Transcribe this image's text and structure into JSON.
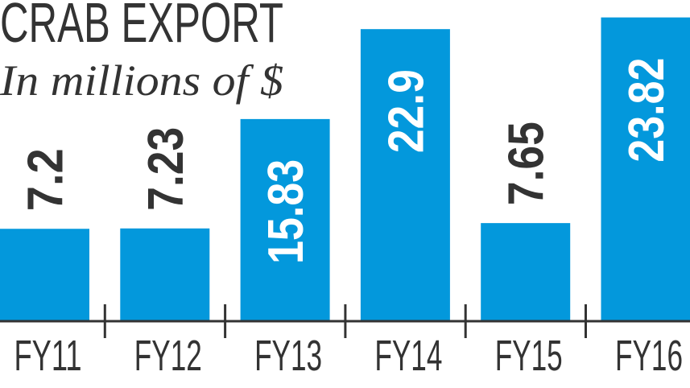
{
  "chart_data": {
    "type": "bar",
    "title": "CRAB EXPORT",
    "subtitle": "In millions of $",
    "categories": [
      "FY11",
      "FY12",
      "FY13",
      "FY14",
      "FY15",
      "FY16"
    ],
    "values": [
      7.2,
      7.23,
      15.83,
      22.9,
      7.65,
      23.82
    ],
    "data_labels": [
      "7.2",
      "7.23",
      "15.83",
      "22.9",
      "7.65",
      "23.82"
    ],
    "xlabel": "",
    "ylabel": "",
    "ylim": [
      0,
      25
    ],
    "grid": false,
    "colors": {
      "bar": "#0398dc",
      "text": "#333333",
      "label_inside": "#ffffff"
    }
  }
}
